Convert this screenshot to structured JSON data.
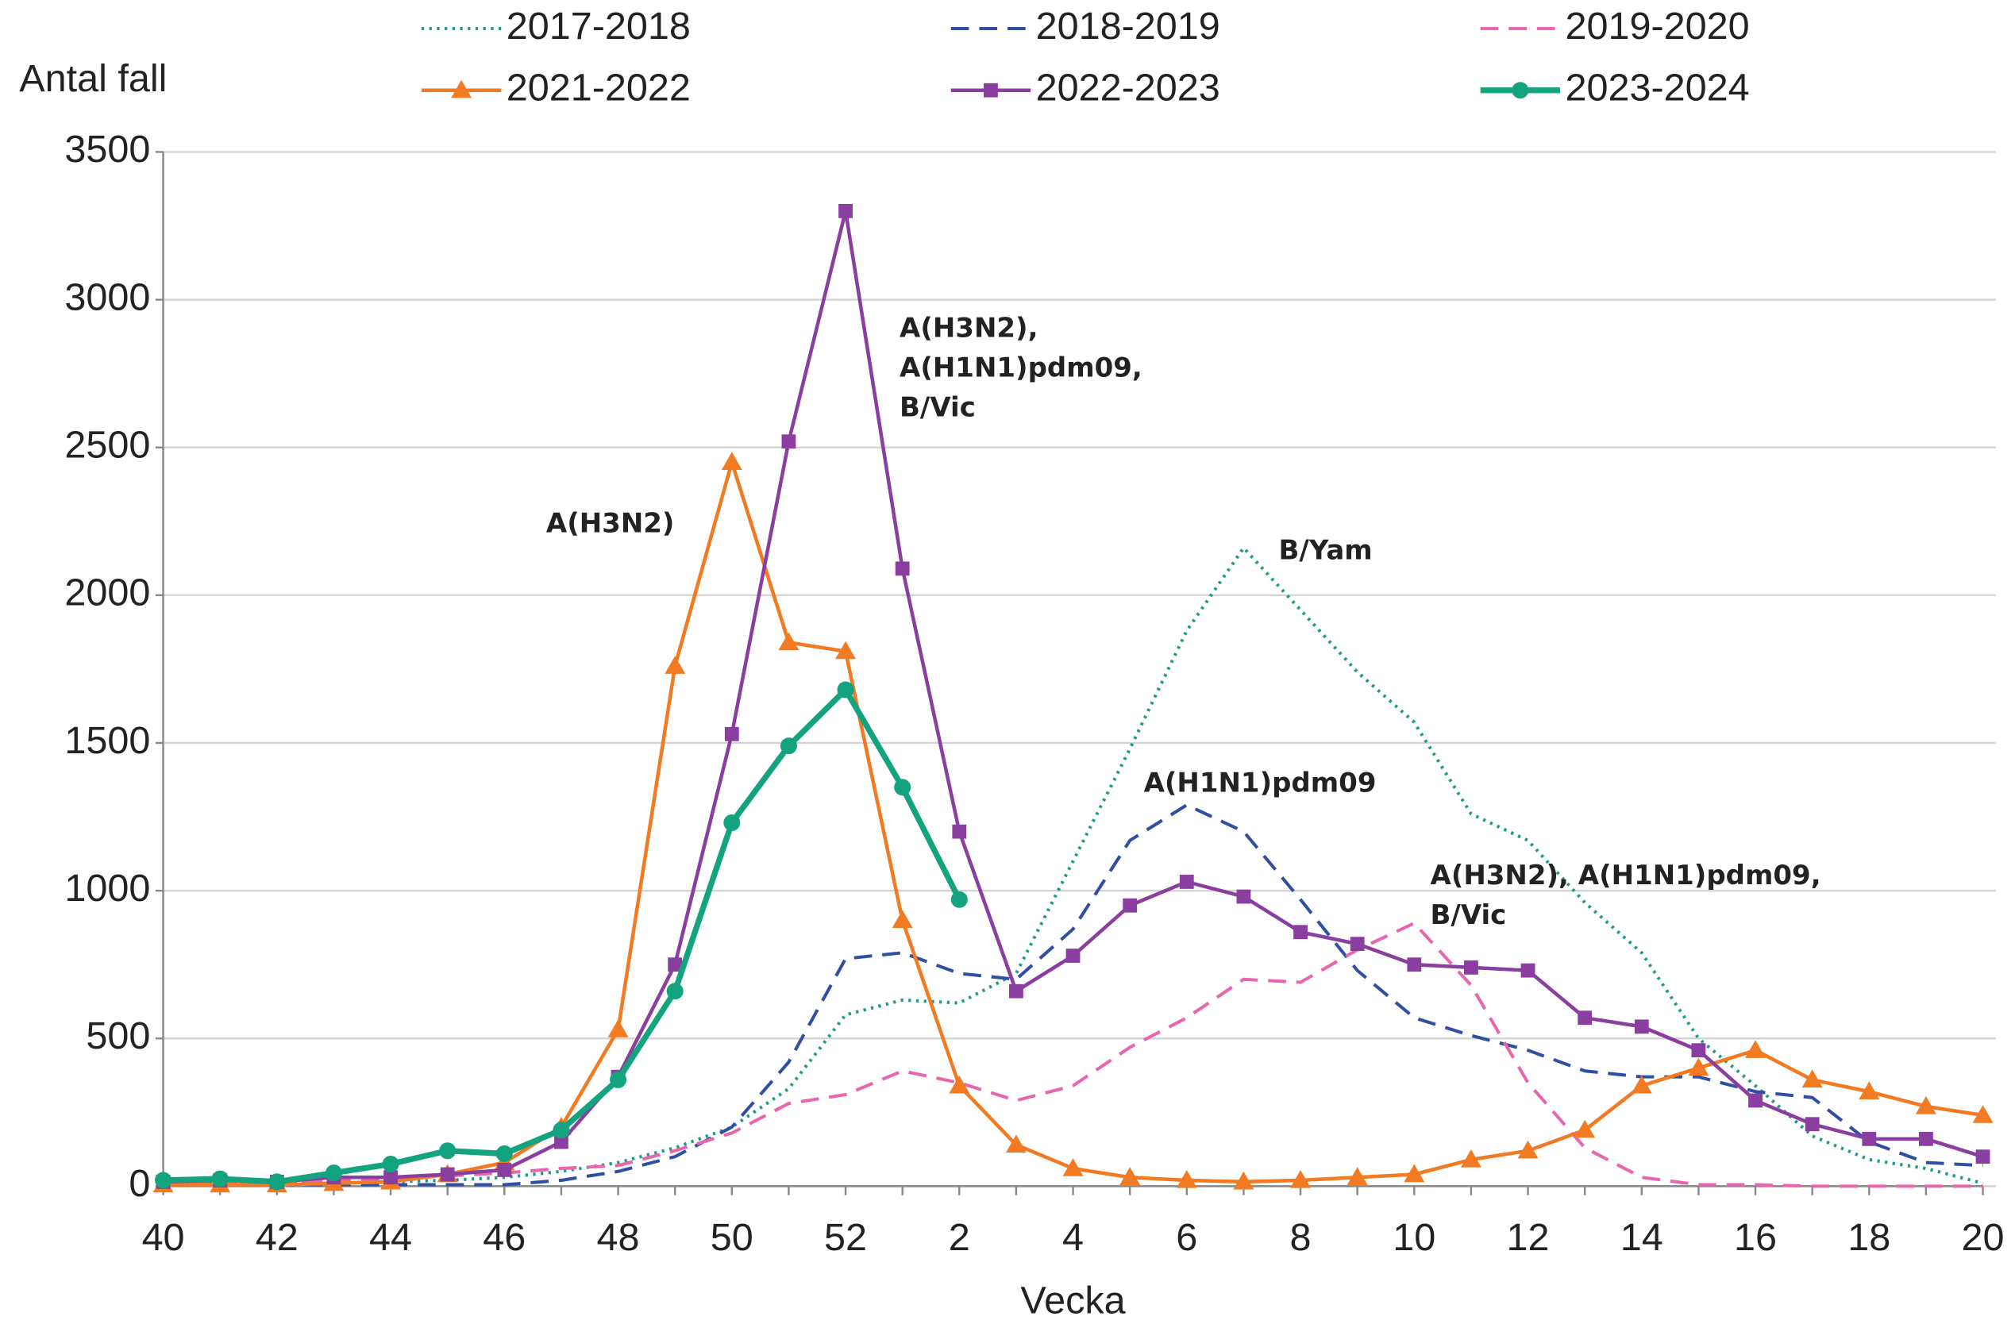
{
  "chart_data": {
    "type": "line",
    "y_label": "Antal fall",
    "x_label": "Vecka",
    "categories": [
      "40",
      null,
      "42",
      null,
      "44",
      null,
      "46",
      null,
      "48",
      null,
      "50",
      null,
      "52",
      null,
      "2",
      null,
      "4",
      null,
      "6",
      null,
      "8",
      null,
      "10",
      null,
      "12",
      null,
      "14",
      null,
      "16",
      null,
      "18",
      null,
      "20"
    ],
    "ylim": [
      0,
      3500
    ],
    "yticks": [
      0,
      500,
      1000,
      1500,
      2000,
      2500,
      3000,
      3500
    ],
    "grid": true,
    "legend": "top",
    "series": [
      {
        "name": "2017-2018",
        "color": "#1f9a8a",
        "style": "dotted",
        "marker": "none",
        "values": [
          10,
          10,
          10,
          10,
          15,
          20,
          30,
          50,
          80,
          130,
          200,
          330,
          580,
          630,
          620,
          720,
          1100,
          1480,
          1880,
          2160,
          1950,
          1740,
          1570,
          1260,
          1170,
          960,
          790,
          500,
          340,
          170,
          90,
          60,
          10
        ]
      },
      {
        "name": "2018-2019",
        "color": "#2e4fa3",
        "style": "dashed",
        "marker": "none",
        "values": [
          5,
          5,
          5,
          5,
          5,
          5,
          5,
          20,
          50,
          100,
          200,
          420,
          770,
          790,
          720,
          700,
          870,
          1170,
          1290,
          1200,
          970,
          730,
          570,
          510,
          460,
          390,
          370,
          370,
          320,
          300,
          150,
          80,
          70
        ]
      },
      {
        "name": "2019-2020",
        "color": "#e866ad",
        "style": "dashed",
        "marker": "none",
        "values": [
          10,
          10,
          15,
          20,
          25,
          35,
          45,
          60,
          70,
          120,
          180,
          280,
          310,
          390,
          350,
          290,
          340,
          470,
          570,
          700,
          690,
          800,
          890,
          680,
          350,
          130,
          30,
          5,
          5,
          0,
          0,
          0,
          0
        ]
      },
      {
        "name": "2021-2022",
        "color": "#f27a22",
        "style": "solid",
        "marker": "triangle",
        "values": [
          5,
          5,
          5,
          10,
          15,
          40,
          80,
          200,
          530,
          1760,
          2450,
          1840,
          1810,
          900,
          340,
          140,
          60,
          30,
          20,
          15,
          20,
          30,
          40,
          90,
          120,
          190,
          340,
          400,
          460,
          360,
          320,
          270,
          240
        ]
      },
      {
        "name": "2022-2023",
        "color": "#8a3fa0",
        "style": "solid",
        "marker": "square",
        "values": [
          15,
          20,
          15,
          30,
          30,
          40,
          55,
          150,
          370,
          750,
          1530,
          2520,
          3300,
          2090,
          1200,
          660,
          780,
          950,
          1030,
          980,
          860,
          820,
          750,
          740,
          730,
          570,
          540,
          460,
          290,
          210,
          160,
          160,
          100
        ]
      },
      {
        "name": "2023-2024",
        "color": "#14a37f",
        "style": "thick",
        "marker": "circle",
        "values": [
          20,
          25,
          15,
          45,
          75,
          120,
          110,
          190,
          360,
          660,
          1230,
          1490,
          1680,
          1350,
          970,
          null,
          null,
          null,
          null,
          null,
          null,
          null,
          null,
          null,
          null,
          null,
          null,
          null,
          null,
          null,
          null,
          null,
          null
        ]
      }
    ],
    "annotations": [
      {
        "lines": [
          "A(H3N2)"
        ],
        "color": "#f27a22"
      },
      {
        "lines": [
          "A(H3N2),",
          "A(H1N1)pdm09,",
          "B/Vic"
        ],
        "color": "#8a3fa0"
      },
      {
        "lines": [
          "B/Yam"
        ],
        "color": "#1f9a8a"
      },
      {
        "lines": [
          "A(H1N1)pdm09"
        ],
        "color": "#2e4fa3"
      },
      {
        "lines": [
          "A(H3N2), A(H1N1)pdm09,",
          "B/Vic"
        ],
        "color": "#e866ad"
      }
    ]
  }
}
